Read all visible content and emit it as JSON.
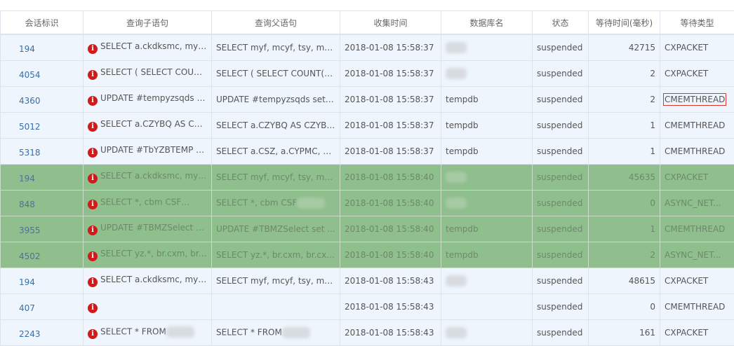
{
  "headers": [
    "会话标识",
    "查询子语句",
    "查询父语句",
    "收集时间",
    "数据库名",
    "状态",
    "等待时间(毫秒)",
    "等待类型"
  ],
  "rows": [
    {
      "id": "194",
      "child": "SELECT a.ckdksmc, myf, ...",
      "parent": "SELECT myf, mcyf, tsy, mysj...",
      "time": "2018-01-08 15:58:37",
      "db": "",
      "status": "suspended",
      "wait": "42715",
      "type": "CXPACKET",
      "hl": false
    },
    {
      "id": "4054",
      "child": "SELECT ( SELECT COUN...",
      "parent": "SELECT ( SELECT COUNT(C...",
      "time": "2018-01-08 15:58:37",
      "db": "",
      "status": "suspended",
      "wait": "2",
      "type": "CXPACKET",
      "hl": false
    },
    {
      "id": "4360",
      "child": "UPDATE #tempyzsqds s...",
      "parent": "UPDATE #tempyzsqds set ...",
      "time": "2018-01-08 15:58:37",
      "db": "tempdb",
      "status": "suspended",
      "wait": "2",
      "type": "CMEMTHREAD",
      "hl": false,
      "boxed": true
    },
    {
      "id": "5012",
      "child": "SELECT a.CZYBQ AS CZY...",
      "parent": "SELECT a.CZYBQ AS CZYBQ...",
      "time": "2018-01-08 15:58:37",
      "db": "tempdb",
      "status": "suspended",
      "wait": "1",
      "type": "CMEMTHREAD",
      "hl": false
    },
    {
      "id": "5318",
      "child": "UPDATE #TbYZBTEMP s...",
      "parent": "SELECT a.CSZ, a.CYPMC, a....",
      "time": "2018-01-08 15:58:37",
      "db": "tempdb",
      "status": "suspended",
      "wait": "1",
      "type": "CMEMTHREAD",
      "hl": false
    },
    {
      "id": "194",
      "child": "SELECT a.ckdksmc, myf, ...",
      "parent": "SELECT myf, mcyf, tsy, mysj...",
      "time": "2018-01-08 15:58:40",
      "db": "",
      "status": "suspended",
      "wait": "45635",
      "type": "CXPACKET",
      "hl": true
    },
    {
      "id": "848",
      "child": "SELECT *, cbm CSF",
      "parent": "SELECT *, cbm CSF",
      "time": "2018-01-08 15:58:40",
      "db": "",
      "status": "suspended",
      "wait": "0",
      "type": "ASYNC_NET...",
      "hl": true
    },
    {
      "id": "3955",
      "child": "UPDATE #TBMZSelect s...",
      "parent": "UPDATE #TBMZSelect set ...",
      "time": "2018-01-08 15:58:40",
      "db": "tempdb",
      "status": "suspended",
      "wait": "1",
      "type": "CMEMTHREAD",
      "hl": true
    },
    {
      "id": "4502",
      "child": "SELECT yz.*, br.cxm, br.c...",
      "parent": "SELECT yz.*, br.cxm, br.cxb,...",
      "time": "2018-01-08 15:58:40",
      "db": "tempdb",
      "status": "suspended",
      "wait": "2",
      "type": "ASYNC_NET...",
      "hl": true
    },
    {
      "id": "194",
      "child": "SELECT a.ckdksmc, myf, ...",
      "parent": "SELECT myf, mcyf, tsy, mysj...",
      "time": "2018-01-08 15:58:43",
      "db": "",
      "status": "suspended",
      "wait": "48615",
      "type": "CXPACKET",
      "hl": false
    },
    {
      "id": "407",
      "child": "",
      "parent": "",
      "time": "2018-01-08 15:58:43",
      "db": "",
      "status": "suspended",
      "wait": "0",
      "type": "CMEMTHREAD",
      "hl": false
    },
    {
      "id": "2243",
      "child": "SELECT * FROM",
      "parent": "SELECT * FROM",
      "time": "2018-01-08 15:58:43",
      "db": "",
      "status": "suspended",
      "wait": "161",
      "type": "CXPACKET",
      "hl": false
    }
  ],
  "colors": {
    "highlight_row": "#8fbf8c",
    "row": "#eef5fc",
    "error_icon": "#d11a1a",
    "box": "#dd3333"
  },
  "icons": {
    "error": "info-circle-icon"
  }
}
